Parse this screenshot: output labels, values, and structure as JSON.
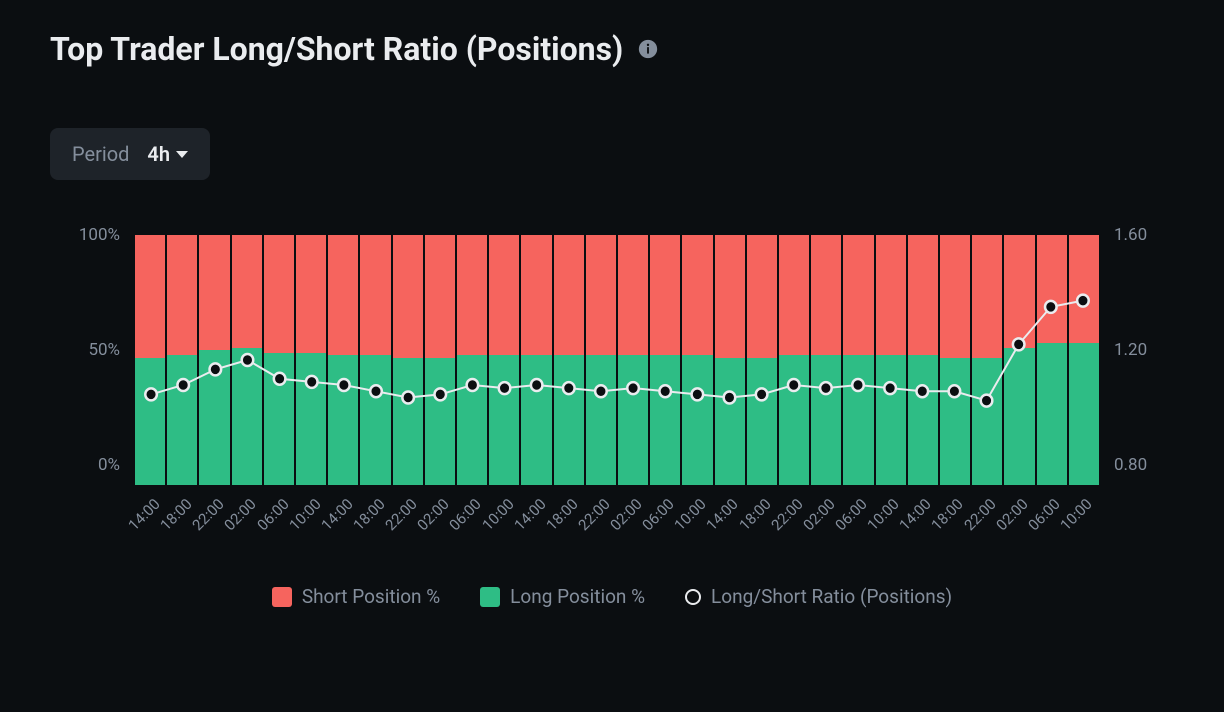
{
  "header": {
    "title": "Top Trader Long/Short Ratio (Positions)"
  },
  "period_selector": {
    "label": "Period",
    "value": "4h"
  },
  "chart": {
    "type": "bar+line",
    "background_color": "#0b0e11",
    "short_color": "#f6645e",
    "long_color": "#2ebd85",
    "line_stroke_color": "#eaecef",
    "line_marker_fill": "#0b0e11",
    "line_marker_stroke": "#eaecef",
    "line_width": 2,
    "marker_radius": 6,
    "marker_stroke_width": 2.5,
    "grid_color": "#2a2e37",
    "axis_label_color": "#848e9c",
    "axis_fontsize": 17,
    "y_left": {
      "min": 0,
      "max": 100,
      "ticks": [
        "100%",
        "50%",
        "0%"
      ]
    },
    "y_right": {
      "min": 0.8,
      "max": 1.6,
      "ticks": [
        "1.60",
        "1.20",
        "0.80"
      ]
    },
    "x_labels": [
      "14:00",
      "18:00",
      "22:00",
      "02:00",
      "06:00",
      "10:00",
      "14:00",
      "18:00",
      "22:00",
      "02:00",
      "06:00",
      "10:00",
      "14:00",
      "18:00",
      "22:00",
      "02:00",
      "06:00",
      "10:00",
      "14:00",
      "18:00",
      "22:00",
      "02:00",
      "06:00",
      "10:00",
      "14:00",
      "18:00",
      "22:00",
      "02:00",
      "06:00",
      "10:00"
    ],
    "x_label_fontsize": 15,
    "x_label_rotation_deg": -45,
    "long_pct": [
      51,
      52,
      54,
      55,
      53,
      53,
      52,
      52,
      51,
      51,
      52,
      52,
      52,
      52,
      52,
      52,
      52,
      52,
      51,
      51,
      52,
      52,
      52,
      52,
      52,
      51,
      51,
      55,
      57,
      57
    ],
    "ratio": [
      1.09,
      1.12,
      1.17,
      1.2,
      1.14,
      1.13,
      1.12,
      1.1,
      1.08,
      1.09,
      1.12,
      1.11,
      1.12,
      1.11,
      1.1,
      1.11,
      1.1,
      1.09,
      1.08,
      1.09,
      1.12,
      1.11,
      1.12,
      1.11,
      1.1,
      1.1,
      1.07,
      1.25,
      1.37,
      1.39
    ]
  },
  "legend": {
    "short": "Short Position %",
    "long": "Long Position %",
    "ratio": "Long/Short Ratio (Positions)"
  }
}
